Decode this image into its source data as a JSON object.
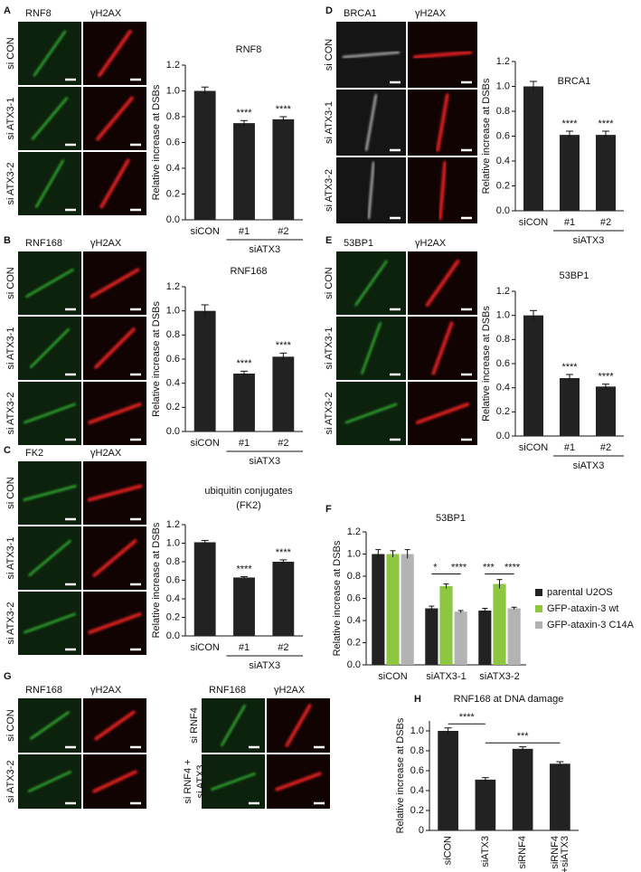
{
  "panel_labels": [
    "A",
    "B",
    "C",
    "D",
    "E",
    "F",
    "G",
    "H"
  ],
  "image_panels": [
    {
      "channels": [
        "RNF8",
        "γH2AX"
      ],
      "rows": [
        "si CON",
        "si ATX3-1",
        "si ATX3-2"
      ]
    },
    {
      "channels": [
        "RNF168",
        "γH2AX"
      ],
      "rows": [
        "si CON",
        "si ATX3-1",
        "si ATX3-2"
      ]
    },
    {
      "channels": [
        "FK2",
        "γH2AX"
      ],
      "rows": [
        "si CON",
        "si ATX3-1",
        "si ATX3-2"
      ]
    },
    {
      "channels": [
        "BRCA1",
        "γH2AX"
      ],
      "rows": [
        "si CON",
        "si ATX3-1",
        "si ATX3-2"
      ]
    },
    {
      "channels": [
        "53BP1",
        "γH2AX"
      ],
      "rows": [
        "si CON",
        "si ATX3-1",
        "si ATX3-2"
      ]
    },
    {
      "channels": [
        "RNF168",
        "γH2AX"
      ],
      "rows": [
        "si CON",
        "si ATX3-2"
      ]
    },
    {
      "channels": [
        "RNF168",
        "γH2AX"
      ],
      "rows": [
        "si RNF4",
        "si RNF4 +",
        "si ATX3"
      ]
    }
  ],
  "chart_data": [
    {
      "type": "bar",
      "title": "RNF8",
      "ylabel": "Relative increase at DSBs",
      "categories": [
        "siCON",
        "#1",
        "#2"
      ],
      "group_label": "siATX3",
      "values": [
        1.0,
        0.75,
        0.78
      ],
      "errors": [
        0.03,
        0.02,
        0.02
      ],
      "annotations": [
        "****",
        "****"
      ],
      "color": "#222222",
      "ylim": [
        0,
        1.2
      ],
      "yticks": [
        {
          "value": 0,
          "label": "0.0"
        },
        0.2,
        0.4,
        0.6,
        0.8,
        {
          "value": 1,
          "label": "1.0"
        },
        1.2
      ]
    },
    {
      "type": "bar",
      "title": "RNF168",
      "ylabel": "Relative increase at DSBs",
      "categories": [
        "siCON",
        "#1",
        "#2"
      ],
      "group_label": "siATX3",
      "values": [
        1.0,
        0.48,
        0.62
      ],
      "errors": [
        0.05,
        0.02,
        0.03
      ],
      "annotations": [
        "****",
        "****"
      ],
      "color": "#222222",
      "ylim": [
        0,
        1.2
      ],
      "yticks": [
        {
          "value": 0,
          "label": "0.0"
        },
        0.2,
        0.4,
        0.6,
        0.8,
        {
          "value": 1,
          "label": "1.0"
        },
        1.2
      ]
    },
    {
      "type": "bar",
      "title": "ubiquitin conjugates",
      "subtitle": "(FK2)",
      "ylabel": "Relative increase at DSBs",
      "categories": [
        "siCON",
        "#1",
        "#2"
      ],
      "group_label": "siATX3",
      "values": [
        1.01,
        0.63,
        0.8
      ],
      "errors": [
        0.02,
        0.01,
        0.02
      ],
      "annotations": [
        "****",
        "****"
      ],
      "color": "#222222",
      "ylim": [
        0,
        1.2
      ],
      "yticks": [
        {
          "value": 0,
          "label": "0.0"
        },
        0.2,
        0.4,
        0.6,
        0.8,
        {
          "value": 1,
          "label": "1.0"
        },
        1.2
      ]
    },
    {
      "type": "bar",
      "title": "BRCA1",
      "ylabel": "Relative increase at DSBs",
      "categories": [
        "siCON",
        "#1",
        "#2"
      ],
      "group_label": "siATX3",
      "values": [
        1.0,
        0.61,
        0.61
      ],
      "errors": [
        0.04,
        0.03,
        0.03
      ],
      "annotations": [
        "****",
        "****"
      ],
      "color": "#222222",
      "ylim": [
        0,
        1.2
      ],
      "yticks": [
        {
          "value": 0,
          "label": "0.0"
        },
        0.2,
        0.4,
        0.6,
        0.8,
        {
          "value": 1,
          "label": "1.0"
        },
        1.2
      ]
    },
    {
      "type": "bar",
      "title": "53BP1",
      "ylabel": "Relative increase at DSBs",
      "categories": [
        "siCON",
        "#1",
        "#2"
      ],
      "group_label": "siATX3",
      "values": [
        1.0,
        0.48,
        0.41
      ],
      "errors": [
        0.04,
        0.03,
        0.02
      ],
      "annotations": [
        "****",
        "****"
      ],
      "color": "#222222",
      "ylim": [
        0,
        1.2
      ],
      "yticks": [
        {
          "value": 0,
          "label": "0.0"
        },
        0.2,
        0.4,
        0.6,
        0.8,
        {
          "value": 1,
          "label": "1.0"
        },
        1.2
      ]
    },
    {
      "type": "grouped_bar",
      "title": "53BP1",
      "ylabel": "Relative increase at DSBs",
      "categories": [
        "siCON",
        "siATX3-1",
        "siATX3-2"
      ],
      "series": [
        {
          "name": "parental U2OS",
          "color": "#222222",
          "values": [
            1.0,
            0.51,
            0.49
          ],
          "errors": [
            0.04,
            0.02,
            0.02
          ]
        },
        {
          "name": "GFP-ataxin-3 wt",
          "color": "#8dc63f",
          "values": [
            1.0,
            0.71,
            0.73
          ],
          "errors": [
            0.03,
            0.02,
            0.04
          ]
        },
        {
          "name": "GFP-ataxin-3 C14A",
          "color": "#b3b3b3",
          "values": [
            1.0,
            0.48,
            0.51
          ],
          "errors": [
            0.04,
            0.01,
            0.01
          ]
        }
      ],
      "annotations": [
        "*",
        "****",
        "***",
        "****"
      ],
      "ylim": [
        0,
        1.2
      ],
      "yticks": [
        {
          "value": 0,
          "label": "0.0"
        },
        0.2,
        0.4,
        0.6,
        0.8,
        {
          "value": 1,
          "label": "1.0"
        },
        1.2
      ]
    },
    {
      "type": "bar",
      "title": "RNF168 at DNA damage",
      "ylabel": "Relative increase at DSBs",
      "categories": [
        "siCON",
        "siATX3",
        "siRNF4",
        [
          "siRNF4",
          "+siATX3"
        ]
      ],
      "values": [
        1.0,
        0.51,
        0.82,
        0.67
      ],
      "errors": [
        0.03,
        0.02,
        0.02,
        0.02
      ],
      "annotations": [
        "****",
        "***"
      ],
      "color": "#222222",
      "ylim": [
        0,
        1.1
      ],
      "yticks": [
        0,
        0.2,
        0.4,
        0.6,
        0.8,
        {
          "value": 1,
          "label": "1.0"
        }
      ]
    }
  ]
}
